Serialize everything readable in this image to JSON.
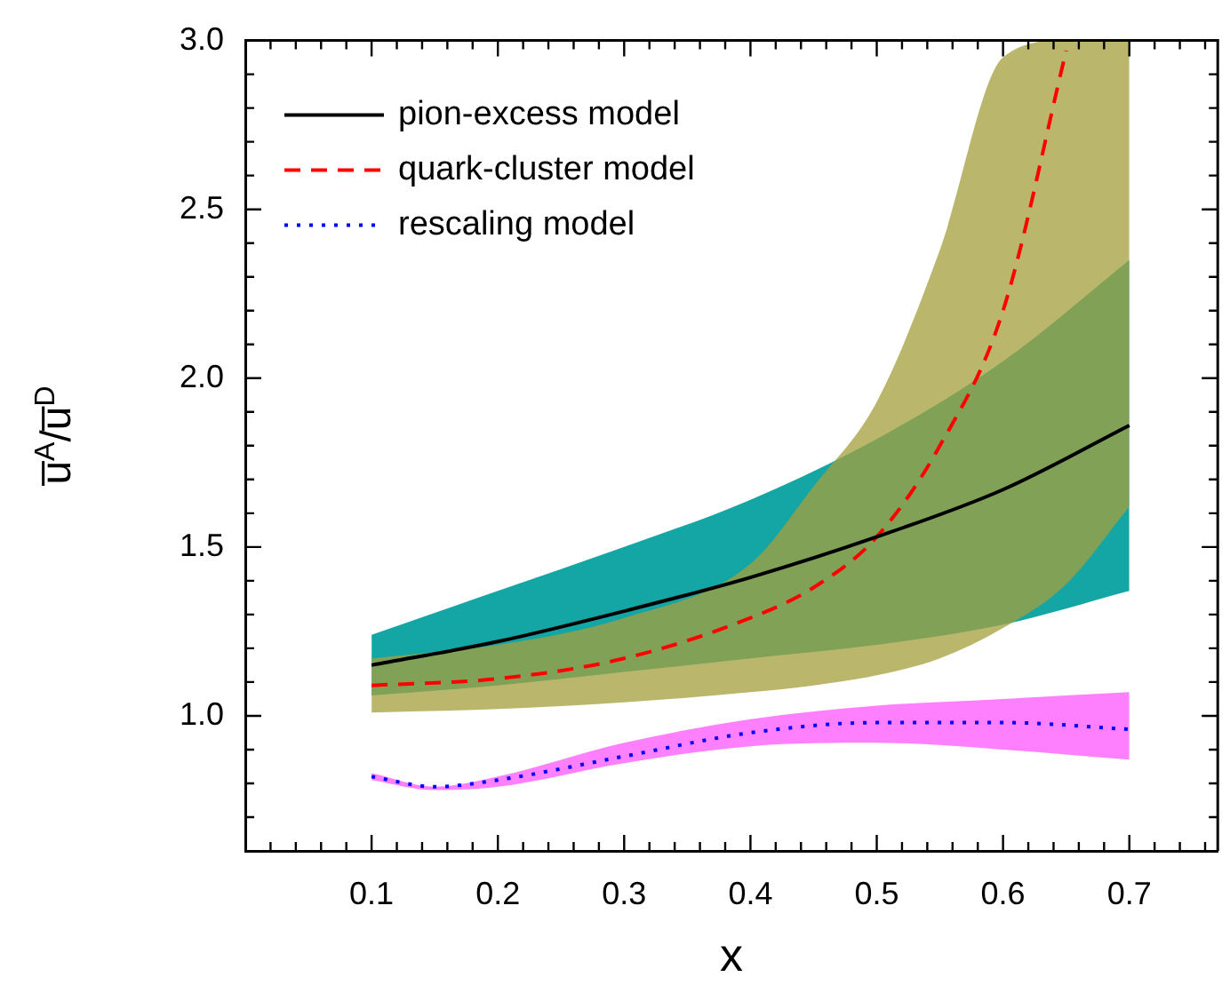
{
  "chart_data": {
    "type": "line",
    "xlabel": "x",
    "ylabel": "u̅$^{A}$/u̅$^{D}$",
    "xlim": [
      0,
      0.77
    ],
    "ylim": [
      0.6,
      3.0
    ],
    "xticks": [
      {
        "value": 0.02,
        "label": null
      },
      {
        "value": 0.04,
        "label": null
      },
      {
        "value": 0.06,
        "label": null
      },
      {
        "value": 0.08,
        "label": null
      },
      0.1,
      {
        "value": 0.12,
        "label": null
      },
      {
        "value": 0.14,
        "label": null
      },
      {
        "value": 0.16,
        "label": null
      },
      {
        "value": 0.18,
        "label": null
      },
      0.2,
      {
        "value": 0.22,
        "label": null
      },
      {
        "value": 0.24,
        "label": null
      },
      {
        "value": 0.26,
        "label": null
      },
      {
        "value": 0.28,
        "label": null
      },
      0.3,
      {
        "value": 0.32,
        "label": null
      },
      {
        "value": 0.34,
        "label": null
      },
      {
        "value": 0.36,
        "label": null
      },
      {
        "value": 0.38,
        "label": null
      },
      0.4,
      {
        "value": 0.42,
        "label": null
      },
      {
        "value": 0.44,
        "label": null
      },
      {
        "value": 0.46,
        "label": null
      },
      {
        "value": 0.48,
        "label": null
      },
      0.5,
      {
        "value": 0.52,
        "label": null
      },
      {
        "value": 0.54,
        "label": null
      },
      {
        "value": 0.56,
        "label": null
      },
      {
        "value": 0.58,
        "label": null
      },
      0.6,
      {
        "value": 0.62,
        "label": null
      },
      {
        "value": 0.64,
        "label": null
      },
      {
        "value": 0.66,
        "label": null
      },
      {
        "value": 0.68,
        "label": null
      },
      0.7,
      {
        "value": 0.72,
        "label": null
      },
      {
        "value": 0.74,
        "label": null
      },
      {
        "value": 0.76,
        "label": null
      }
    ],
    "yticks": [
      {
        "value": 0.7,
        "label": null
      },
      {
        "value": 0.8,
        "label": null
      },
      {
        "value": 0.9,
        "label": null
      },
      {
        "value": 1.0,
        "label": "1.0"
      },
      {
        "value": 1.1,
        "label": null
      },
      {
        "value": 1.2,
        "label": null
      },
      {
        "value": 1.3,
        "label": null
      },
      {
        "value": 1.4,
        "label": null
      },
      1.5,
      {
        "value": 1.6,
        "label": null
      },
      {
        "value": 1.7,
        "label": null
      },
      {
        "value": 1.8,
        "label": null
      },
      {
        "value": 1.9,
        "label": null
      },
      {
        "value": 2.0,
        "label": "2.0"
      },
      {
        "value": 2.1,
        "label": null
      },
      {
        "value": 2.2,
        "label": null
      },
      {
        "value": 2.3,
        "label": null
      },
      {
        "value": 2.4,
        "label": null
      },
      2.5,
      {
        "value": 2.6,
        "label": null
      },
      {
        "value": 2.7,
        "label": null
      },
      {
        "value": 2.8,
        "label": null
      },
      {
        "value": 2.9,
        "label": null
      },
      {
        "value": 3.0,
        "label": "3.0"
      }
    ],
    "grid": false,
    "legend": "top left",
    "marker": "none",
    "series": [
      {
        "name": "pion-excess model",
        "color": "#000000",
        "colors": [
          "#14a5a5",
          "#14a5a5",
          "#14a5a5",
          "#14a5a5",
          "#14a5a5",
          "#14a5a5",
          "#14a5a5"
        ],
        "line_style": "solid",
        "x": [
          0.1,
          0.2,
          0.3,
          0.4,
          0.5,
          0.6,
          0.7
        ],
        "values": [
          1.15,
          1.22,
          1.31,
          1.41,
          1.53,
          1.67,
          1.86
        ],
        "upper": [
          1.24,
          1.37,
          1.5,
          1.64,
          1.82,
          2.05,
          2.35
        ],
        "lower": [
          1.06,
          1.09,
          1.13,
          1.17,
          1.21,
          1.27,
          1.37
        ]
      },
      {
        "name": "quark-cluster model",
        "color": "#ff0000",
        "colors": [
          "#a3a03c",
          "#a3a03c",
          "#a3a03c",
          "#a3a03c",
          "#a3a03c",
          "#a3a03c",
          "#a3a03c",
          "#a3a03c",
          "#a3a03c",
          "#a3a03c"
        ],
        "line_style": "dashed",
        "x": [
          0.1,
          0.2,
          0.3,
          0.4,
          0.45,
          0.5,
          0.55,
          0.6,
          0.65,
          0.7
        ],
        "values": [
          1.09,
          1.11,
          1.17,
          1.29,
          1.38,
          1.53,
          1.8,
          2.2,
          2.97,
          null
        ],
        "upper": [
          1.17,
          1.21,
          1.29,
          1.45,
          1.68,
          1.93,
          2.38,
          2.95,
          3.0,
          3.0
        ],
        "lower": [
          1.01,
          1.02,
          1.04,
          1.07,
          1.09,
          1.12,
          1.17,
          1.26,
          1.39,
          1.62
        ]
      },
      {
        "name": "rescaling model",
        "color": "#0000ff",
        "colors": [
          "#ff80ff",
          "#ff80ff",
          "#ff80ff",
          "#ff80ff",
          "#ff80ff",
          "#ff80ff",
          "#ff80ff",
          "#ff80ff"
        ],
        "line_style": "dotted",
        "x": [
          0.1,
          0.15,
          0.2,
          0.3,
          0.4,
          0.5,
          0.6,
          0.7
        ],
        "values": [
          0.82,
          0.79,
          0.81,
          0.88,
          0.95,
          0.98,
          0.98,
          0.96
        ],
        "upper": [
          0.83,
          0.79,
          0.82,
          0.92,
          0.99,
          1.03,
          1.05,
          1.07
        ],
        "lower": [
          0.81,
          0.78,
          0.79,
          0.86,
          0.91,
          0.92,
          0.9,
          0.87
        ]
      }
    ]
  }
}
